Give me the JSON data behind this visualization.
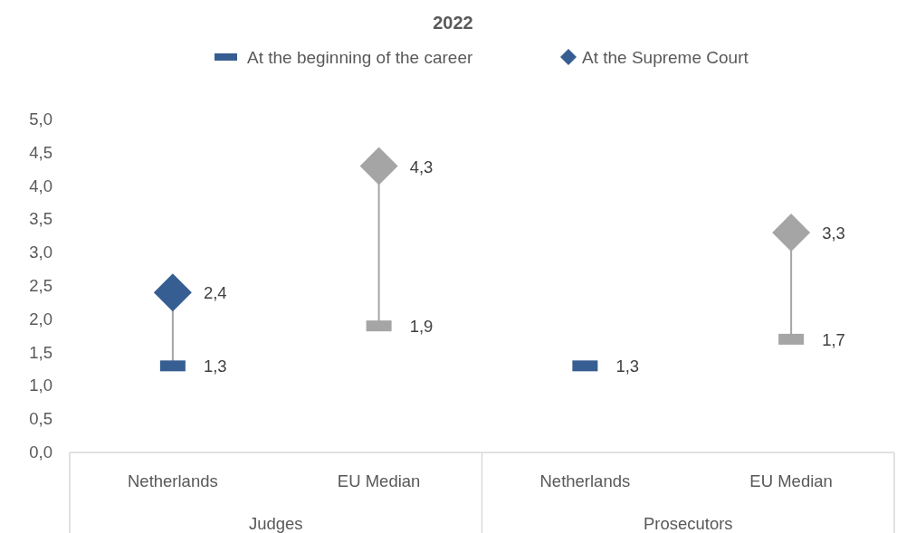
{
  "chart_data": {
    "type": "scatter",
    "title": "2022",
    "categories": [
      "Netherlands",
      "EU Median",
      "Netherlands",
      "EU Median"
    ],
    "series": [
      {
        "name": "At the beginning of the career",
        "type": "scatter",
        "marker": "square",
        "colors": [
          "#375e92",
          "#a5a5a5",
          "#375e92",
          "#a5a5a5"
        ],
        "color": "#375e92",
        "values": [
          1.3,
          1.9,
          1.3,
          1.7
        ],
        "value_labels": [
          "1,3",
          "1,9",
          "1,3",
          "1,7"
        ]
      },
      {
        "name": "At the Supreme Court",
        "type": "scatter",
        "marker": "diamond",
        "colors": [
          "#375e92",
          "#a5a5a5",
          "#375e92",
          "#a5a5a5"
        ],
        "color": "#375e92",
        "values": [
          2.4,
          4.3,
          null,
          3.3
        ],
        "value_labels": [
          "2,4",
          "4,3",
          null,
          "3,3"
        ]
      }
    ],
    "annotations": [
      "Judges",
      "Prosecutors"
    ],
    "ylim": [
      0,
      5
    ],
    "yticks": [
      {
        "value": 0,
        "label": "0,0"
      },
      {
        "value": 0.5,
        "label": "0,5"
      },
      {
        "value": 1,
        "label": "1,0"
      },
      {
        "value": 1.5,
        "label": "1,5"
      },
      {
        "value": 2,
        "label": "2,0"
      },
      {
        "value": 2.5,
        "label": "2,5"
      },
      {
        "value": 3,
        "label": "3,0"
      },
      {
        "value": 3.5,
        "label": "3,5"
      },
      {
        "value": 4,
        "label": "4,0"
      },
      {
        "value": 4.5,
        "label": "4,5"
      },
      {
        "value": 5,
        "label": "5,0"
      }
    ],
    "grid": false,
    "legend": "top"
  }
}
